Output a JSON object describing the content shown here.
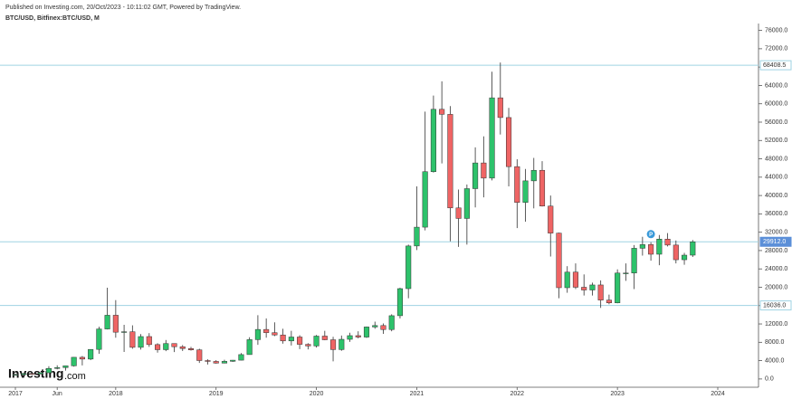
{
  "header": {
    "published": "Published on Investing.com, 20/Oct/2023 - 10:11:02 GMT, Powered by TradingView.",
    "symbol": "BTC/USD, Bitfinex:BTC/USD, M"
  },
  "logo": {
    "name": "Investing",
    "suffix": ".com"
  },
  "chart_data": {
    "type": "candlestick",
    "up_color": "#2dc26b",
    "down_color": "#ef6464",
    "wick_color": "#333333",
    "categories": [
      "2017",
      null,
      null,
      null,
      null,
      "Jun",
      null,
      null,
      null,
      null,
      null,
      null,
      "2018",
      null,
      null,
      null,
      null,
      null,
      null,
      null,
      null,
      null,
      null,
      null,
      "2019",
      null,
      null,
      null,
      null,
      null,
      null,
      null,
      null,
      null,
      null,
      null,
      "2020",
      null,
      null,
      null,
      null,
      null,
      null,
      null,
      null,
      null,
      null,
      null,
      "2021",
      null,
      null,
      null,
      null,
      null,
      null,
      null,
      null,
      null,
      null,
      null,
      "2022",
      null,
      null,
      null,
      null,
      null,
      null,
      null,
      null,
      null,
      null,
      null,
      "2023",
      null,
      null,
      null,
      null,
      null,
      null,
      null,
      null,
      null,
      null,
      null,
      "2024"
    ],
    "open": [
      963,
      970,
      1190,
      1080,
      1350,
      2300,
      2480,
      2870,
      4730,
      4340,
      6450,
      10900,
      13900,
      10200,
      10300,
      6900,
      9250,
      7500,
      6390,
      7730,
      7030,
      6630,
      6350,
      4020,
      3830,
      3460,
      3850,
      4100,
      5320,
      8580,
      10800,
      10100,
      9600,
      8300,
      9150,
      7550,
      7200,
      9350,
      8550,
      6410,
      8650,
      9450,
      9140,
      11340,
      11650,
      10780,
      13800,
      19700,
      29000,
      33100,
      45200,
      58800,
      57700,
      37300,
      35000,
      41500,
      47100,
      43800,
      61300,
      57000,
      46300,
      38500,
      43200,
      45500,
      37700,
      31800,
      19900,
      23300,
      20000,
      19400,
      20500,
      17200,
      16600,
      23100,
      23100,
      28500,
      29300,
      27200,
      30500,
      29200,
      26000,
      27000,
      null,
      null,
      null
    ],
    "high": [
      1190,
      1200,
      1350,
      1450,
      2790,
      2980,
      2900,
      4780,
      5000,
      6470,
      11400,
      19900,
      17200,
      11800,
      11700,
      9800,
      10000,
      7800,
      8500,
      7770,
      7400,
      7000,
      6600,
      4300,
      4100,
      4200,
      4150,
      5640,
      9100,
      13900,
      13200,
      12350,
      10950,
      10500,
      9550,
      7800,
      9600,
      10500,
      9200,
      9470,
      10080,
      10400,
      11450,
      12500,
      12100,
      14100,
      19900,
      29300,
      42000,
      58300,
      61800,
      64900,
      59500,
      41300,
      42400,
      50500,
      52900,
      67000,
      69000,
      59100,
      47900,
      45800,
      48200,
      47500,
      40000,
      31900,
      24600,
      25200,
      22800,
      21000,
      21500,
      18400,
      23900,
      25200,
      29200,
      31000,
      29800,
      31400,
      31800,
      30200,
      27500,
      30300,
      null,
      null,
      null
    ],
    "low": [
      750,
      915,
      890,
      1060,
      1350,
      2100,
      1830,
      2700,
      2970,
      4110,
      5500,
      10800,
      9000,
      5900,
      6600,
      6400,
      7000,
      5750,
      6070,
      5880,
      6100,
      6200,
      3500,
      3150,
      3350,
      3400,
      3730,
      4070,
      5330,
      7450,
      9000,
      9350,
      7700,
      7300,
      6500,
      6450,
      6850,
      8450,
      3850,
      6150,
      8100,
      8850,
      8950,
      10950,
      9850,
      10400,
      13200,
      17600,
      28100,
      32400,
      45000,
      47000,
      30000,
      28800,
      29300,
      37400,
      39600,
      43300,
      53300,
      42000,
      32900,
      34300,
      37200,
      37600,
      26700,
      17600,
      18800,
      19600,
      18200,
      18200,
      15500,
      16300,
      16500,
      21400,
      19600,
      26900,
      25800,
      24800,
      28900,
      25200,
      24900,
      26600,
      null,
      null,
      null
    ],
    "close": [
      970,
      1190,
      1080,
      1350,
      2300,
      2480,
      2870,
      4730,
      4340,
      6450,
      10900,
      13900,
      10200,
      10300,
      6900,
      9250,
      7500,
      6390,
      7730,
      7030,
      6630,
      6350,
      4020,
      3830,
      3460,
      3850,
      4100,
      5320,
      8580,
      10800,
      10100,
      9600,
      8300,
      9150,
      7550,
      7200,
      9350,
      8550,
      6410,
      8650,
      9450,
      9140,
      11340,
      11650,
      10780,
      13800,
      19700,
      29000,
      33100,
      45200,
      58800,
      57700,
      37300,
      35000,
      41500,
      47100,
      43800,
      61300,
      57000,
      46300,
      38500,
      43200,
      45500,
      37700,
      31800,
      19900,
      23300,
      20000,
      19400,
      20500,
      17200,
      16600,
      23100,
      23100,
      28500,
      29300,
      27200,
      30500,
      29200,
      26000,
      27000,
      29912,
      null,
      null,
      null
    ],
    "ylim": [
      -1800,
      77500
    ],
    "yticks": [
      {
        "value": 0,
        "label": "0.0"
      },
      {
        "value": 4000,
        "label": "4000.0"
      },
      {
        "value": 8000,
        "label": "8000.0"
      },
      {
        "value": 12000,
        "label": "12000.0"
      },
      {
        "value": 16000,
        "label": "16000.0"
      },
      {
        "value": 20000,
        "label": "20000.0"
      },
      {
        "value": 24000,
        "label": "24000.0"
      },
      {
        "value": 28000,
        "label": "28000.0"
      },
      {
        "value": 32000,
        "label": "32000.0"
      },
      {
        "value": 36000,
        "label": "36000.0"
      },
      {
        "value": 40000,
        "label": "40000.0"
      },
      {
        "value": 44000,
        "label": "44000.0"
      },
      {
        "value": 48000,
        "label": "48000.0"
      },
      {
        "value": 52000,
        "label": "52000.0"
      },
      {
        "value": 56000,
        "label": "56000.0"
      },
      {
        "value": 60000,
        "label": "60000.0"
      },
      {
        "value": 64000,
        "label": "64000.0"
      },
      {
        "value": 68000,
        "label": "68000.0"
      },
      {
        "value": 72000,
        "label": "72000.0"
      },
      {
        "value": 76000,
        "label": "76000.0"
      }
    ],
    "hlines": [
      {
        "value": 68408.5,
        "label": "68408.5"
      },
      {
        "value": 29912,
        "label": "29912.0"
      },
      {
        "value": 16036,
        "label": "16036.0"
      }
    ],
    "hline_color": "#9fd3e3",
    "annotations": [
      "P"
    ]
  }
}
